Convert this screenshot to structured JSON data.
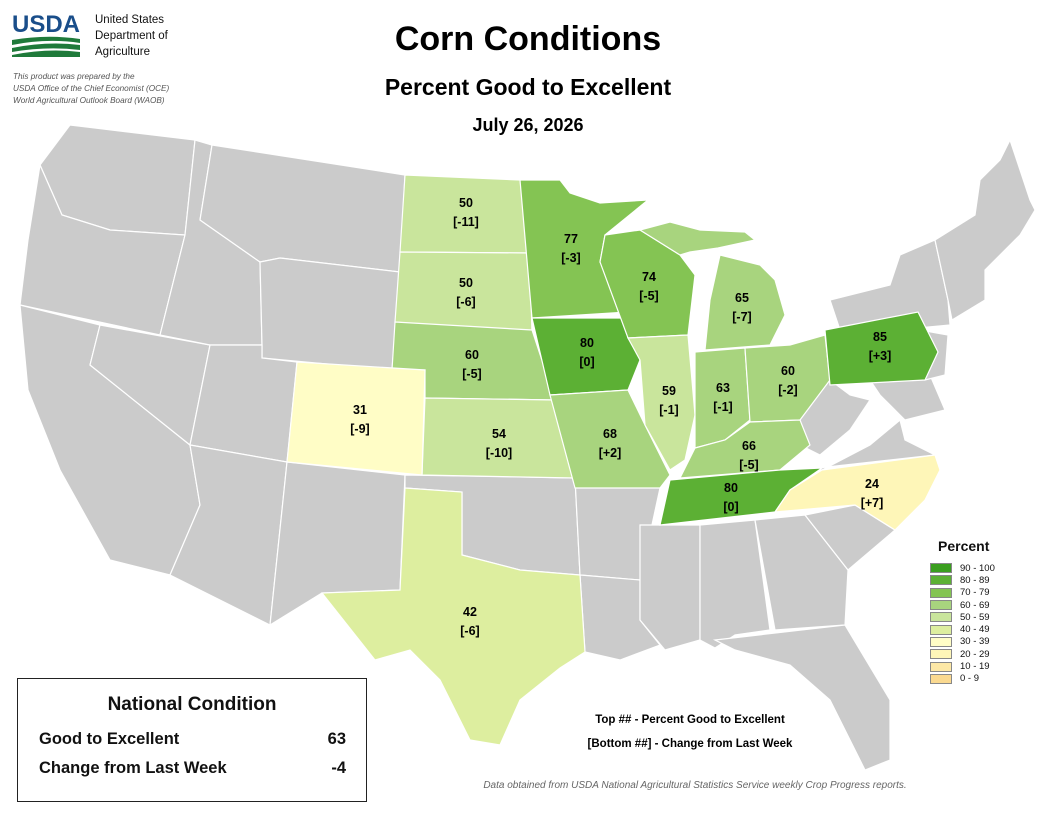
{
  "header": {
    "logo_text": "USDA",
    "agency_lines": [
      "United States",
      "Department of",
      "Agriculture"
    ],
    "prepared_lines": [
      "This product was prepared by the",
      "USDA Office of the Chief Economist (OCE)",
      "World Agricultural Outlook Board (WAOB)"
    ]
  },
  "title": "Corn Conditions",
  "subtitle": "Percent Good to Excellent",
  "date": "July 26, 2026",
  "colors": {
    "no_data": "#cbcbcb",
    "bins": [
      "#3a9e1f",
      "#5cb034",
      "#84c453",
      "#a8d47e",
      "#c9e59c",
      "#ddee9f",
      "#fffdc6",
      "#fef6b8",
      "#fde8a6",
      "#fad990"
    ]
  },
  "legend": {
    "title": "Percent",
    "items": [
      {
        "label": "90 - 100",
        "color": "#3a9e1f"
      },
      {
        "label": "80 - 89",
        "color": "#5cb034"
      },
      {
        "label": "70 - 79",
        "color": "#84c453"
      },
      {
        "label": "60 - 69",
        "color": "#a8d47e"
      },
      {
        "label": "50 - 59",
        "color": "#c9e59c"
      },
      {
        "label": "40 - 49",
        "color": "#ddee9f"
      },
      {
        "label": "30 - 39",
        "color": "#fffdc6"
      },
      {
        "label": "20 - 29",
        "color": "#fef6b8"
      },
      {
        "label": "10 - 19",
        "color": "#fde8a6"
      },
      {
        "label": "0 - 9",
        "color": "#fad990"
      }
    ]
  },
  "states": [
    {
      "id": "north-dakota",
      "value": 50,
      "change": "[-11]"
    },
    {
      "id": "south-dakota",
      "value": 50,
      "change": "[-6]"
    },
    {
      "id": "nebraska",
      "value": 60,
      "change": "[-5]"
    },
    {
      "id": "kansas",
      "value": 54,
      "change": "[-10]"
    },
    {
      "id": "colorado",
      "value": 31,
      "change": "[-9]"
    },
    {
      "id": "texas",
      "value": 42,
      "change": "[-6]"
    },
    {
      "id": "minnesota",
      "value": 77,
      "change": "[-3]"
    },
    {
      "id": "iowa",
      "value": 80,
      "change": "[0]"
    },
    {
      "id": "missouri",
      "value": 68,
      "change": "[+2]"
    },
    {
      "id": "wisconsin",
      "value": 74,
      "change": "[-5]"
    },
    {
      "id": "illinois",
      "value": 59,
      "change": "[-1]"
    },
    {
      "id": "michigan",
      "value": 65,
      "change": "[-7]"
    },
    {
      "id": "indiana",
      "value": 63,
      "change": "[-1]"
    },
    {
      "id": "ohio",
      "value": 60,
      "change": "[-2]"
    },
    {
      "id": "kentucky",
      "value": 66,
      "change": "[-5]"
    },
    {
      "id": "tennessee",
      "value": 80,
      "change": "[0]"
    },
    {
      "id": "north-carolina",
      "value": 24,
      "change": "[+7]"
    },
    {
      "id": "pennsylvania",
      "value": 85,
      "change": "[+3]"
    }
  ],
  "key": {
    "top": "Top ## - Percent Good to Excellent",
    "bottom": "[Bottom ##] - Change from Last Week"
  },
  "national": {
    "title": "National Condition",
    "rows": [
      {
        "label": "Good to Excellent",
        "value": "63"
      },
      {
        "label": "Change from Last Week",
        "value": "-4"
      }
    ]
  },
  "source": "Data obtained from USDA National Agricultural Statistics Service weekly Crop Progress reports."
}
